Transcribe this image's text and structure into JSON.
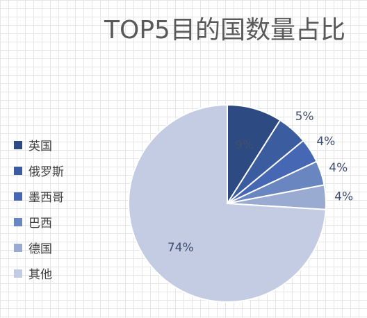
{
  "chart_data": {
    "type": "pie",
    "title": "TOP5目的国数量占比",
    "categories": [
      "英国",
      "俄罗斯",
      "墨西哥",
      "巴西",
      "德国",
      "其他"
    ],
    "values": [
      9,
      5,
      4,
      4,
      4,
      74
    ],
    "labels": [
      "9%",
      "5%",
      "4%",
      "4%",
      "4%",
      "74%"
    ],
    "colors": [
      "#2e4a82",
      "#3b5da0",
      "#4567b4",
      "#6a86c0",
      "#9aabd1",
      "#c3cce3"
    ],
    "legend_position": "left"
  }
}
